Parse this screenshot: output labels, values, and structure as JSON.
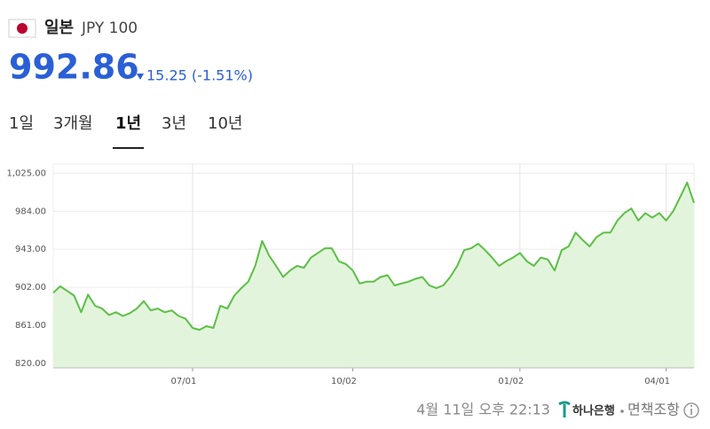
{
  "header": {
    "country": "일본",
    "currency": "JPY 100",
    "price": "992.86",
    "change": "15.25 (-1.51%)"
  },
  "tabs": [
    "1일",
    "3개월",
    "1년",
    "3년",
    "10년"
  ],
  "selected_tab": 2,
  "chart_data": {
    "type": "area",
    "categories": [
      null,
      null,
      null,
      null,
      null,
      null,
      null,
      null,
      null,
      null,
      null,
      null,
      null,
      null,
      null,
      null,
      null,
      null,
      null,
      null,
      "07/01",
      null,
      null,
      null,
      null,
      null,
      null,
      null,
      null,
      null,
      null,
      null,
      null,
      null,
      null,
      null,
      null,
      null,
      null,
      null,
      null,
      null,
      null,
      "10/02",
      null,
      null,
      null,
      null,
      null,
      null,
      null,
      null,
      null,
      null,
      null,
      null,
      null,
      null,
      null,
      null,
      null,
      null,
      null,
      null,
      null,
      null,
      null,
      "01/02",
      null,
      null,
      null,
      null,
      null,
      null,
      null,
      null,
      null,
      null,
      null,
      null,
      null,
      null,
      null,
      null,
      null,
      null,
      null,
      null,
      "04/01",
      null,
      null,
      null,
      null
    ],
    "series": [
      {
        "name": "JPY 100",
        "color": "#5cbf45",
        "fill": "#e2f5dc",
        "values": [
          896,
          903,
          898,
          893,
          875,
          894,
          882,
          879,
          872,
          875,
          871,
          874,
          879,
          887,
          877,
          879,
          875,
          877,
          871,
          868,
          858,
          856,
          860,
          858,
          882,
          879,
          893,
          901,
          908,
          925,
          952,
          936,
          925,
          913,
          920,
          925,
          923,
          934,
          939,
          944,
          944,
          930,
          927,
          920,
          906,
          908,
          908,
          913,
          915,
          904,
          906,
          908,
          911,
          913,
          904,
          901,
          904,
          913,
          925,
          942,
          944,
          949,
          942,
          934,
          925,
          930,
          934,
          939,
          930,
          925,
          934,
          932,
          920,
          942,
          946,
          961,
          953,
          946,
          956,
          961,
          961,
          974,
          982,
          987,
          974,
          982,
          977,
          982,
          974,
          984,
          999,
          1015,
          993
        ]
      }
    ],
    "ylim": [
      815,
      1035
    ],
    "yticks": [
      {
        "value": 820,
        "label": "820.00"
      },
      {
        "value": 861,
        "label": "861.00"
      },
      {
        "value": 902,
        "label": "902.00"
      },
      {
        "value": 943,
        "label": "943.00"
      },
      {
        "value": 984,
        "label": "984.00"
      },
      {
        "value": 1025,
        "label": "1,025.00"
      }
    ],
    "grid": true
  },
  "footer": {
    "timestamp": "4월 11일 오후 22:13",
    "bank": "하나은행",
    "disclaimer": "면책조항"
  }
}
